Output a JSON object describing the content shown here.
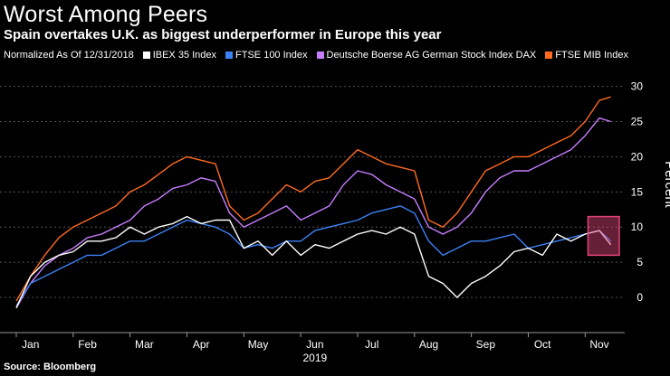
{
  "title": "Worst Among Peers",
  "subtitle": "Spain overtakes U.K. as biggest underperformer in Europe this year",
  "source": "Source: Bloomberg",
  "colors": {
    "ibex": "#ffffff",
    "ftse100": "#3b82f6",
    "dax": "#c77dff",
    "ftsemib": "#ff6a1f",
    "highlight": "#e0447a"
  },
  "chart_data": {
    "type": "line",
    "title": "Worst Among Peers",
    "subtitle": "Spain overtakes U.K. as biggest underperformer in Europe this year",
    "note": "Normalized As Of 12/31/2018",
    "ylabel": "Percent",
    "xlabel": "2019",
    "ylim": [
      -5,
      32
    ],
    "yticks": [
      "0",
      "5",
      "10",
      "15",
      "20",
      "25",
      "30"
    ],
    "ytick_values": [
      0,
      5,
      10,
      15,
      20,
      25,
      30
    ],
    "months": [
      "Jan",
      "Feb",
      "Mar",
      "Apr",
      "May",
      "Jun",
      "Jul",
      "Aug",
      "Sep",
      "Oct",
      "Nov"
    ],
    "year_label": "2019",
    "x_range": [
      0,
      10.6
    ],
    "x": [
      0,
      0.25,
      0.5,
      0.75,
      1.0,
      1.25,
      1.5,
      1.75,
      2.0,
      2.25,
      2.5,
      2.75,
      3.0,
      3.25,
      3.5,
      3.75,
      4.0,
      4.25,
      4.5,
      4.75,
      5.0,
      5.25,
      5.5,
      5.75,
      6.0,
      6.25,
      6.5,
      6.75,
      7.0,
      7.25,
      7.5,
      7.75,
      8.0,
      8.25,
      8.5,
      8.75,
      9.0,
      9.25,
      9.5,
      9.75,
      10.0,
      10.25,
      10.45
    ],
    "series": [
      {
        "name": "IBEX 35 Index",
        "key": "ibex",
        "values": [
          -1.5,
          3,
          5,
          6,
          6.5,
          8,
          8,
          8.5,
          10,
          9,
          10,
          10.5,
          11.5,
          10.5,
          11,
          11,
          7,
          8,
          6,
          8,
          6,
          7.5,
          7,
          8,
          9,
          9.5,
          9,
          10,
          9,
          3,
          2,
          0,
          2,
          3,
          4.5,
          6.5,
          7,
          6,
          9,
          8,
          9,
          9.5,
          7.5
        ]
      },
      {
        "name": "FTSE 100 Index",
        "key": "ftse100",
        "values": [
          -1.2,
          2,
          3,
          4,
          5,
          6,
          6,
          7,
          8,
          8,
          9,
          10,
          11,
          10.5,
          10,
          9,
          7,
          7.5,
          7,
          8,
          8,
          9.5,
          10,
          10.5,
          11,
          12,
          12.5,
          13,
          12,
          8,
          6,
          7,
          8,
          8,
          8.5,
          9,
          7,
          7.5,
          8,
          8.5,
          9,
          9.5,
          8
        ]
      },
      {
        "name": "Deutsche Boerse AG German Stock Index DAX",
        "key": "dax",
        "values": [
          -1.5,
          2,
          4.5,
          6,
          7,
          8.5,
          9,
          10,
          11,
          13,
          14,
          15.5,
          16,
          17,
          16.5,
          12,
          10,
          11,
          12,
          13,
          11,
          12,
          13,
          16,
          18,
          17.5,
          16,
          15,
          14,
          10,
          9,
          10,
          12,
          15,
          17,
          18,
          18,
          19,
          20,
          21,
          23,
          25.5,
          25
        ]
      },
      {
        "name": "FTSE MIB Index",
        "key": "ftsemib",
        "values": [
          -0.5,
          3,
          6,
          8.5,
          10,
          11,
          12,
          13,
          15,
          16,
          17.5,
          19,
          20,
          19.5,
          19,
          13,
          11,
          12,
          14,
          16,
          15,
          16.5,
          17,
          19,
          21,
          20,
          19,
          18.5,
          18,
          11,
          10,
          12,
          15,
          18,
          19,
          20,
          20,
          21,
          22,
          23,
          25,
          28,
          28.5
        ]
      }
    ],
    "highlight_box": {
      "x_start": 10.05,
      "x_end": 10.6,
      "y_start": 6,
      "y_end": 11.5
    }
  }
}
